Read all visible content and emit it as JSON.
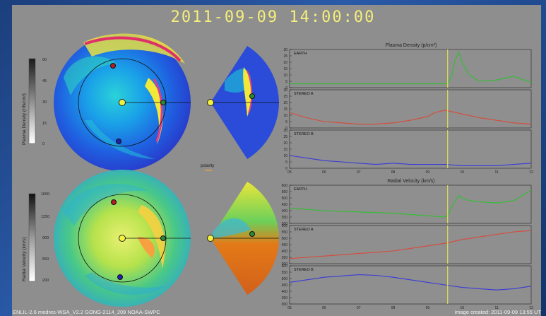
{
  "header": {
    "timestamp": "2011-09-09   14:00:00"
  },
  "footer": {
    "model_text": "ENLIL-2.6 medres-WSA_V2.2 GONG-2114_209 NOAA-SWPC",
    "created_text": "image created: 2011-09-09 13:55 UT"
  },
  "colorbars": {
    "density": {
      "label": "Plasma Density (r²N/cm³)",
      "ticks": [
        "60",
        "45",
        "30",
        "15",
        "0"
      ]
    },
    "velocity": {
      "label": "Radial Velocity (km/s)",
      "ticks": [
        "1600",
        "1250",
        "900",
        "550",
        "200"
      ]
    }
  },
  "polarity": {
    "label": "polarity"
  },
  "colors": {
    "earth": "#2fc02f",
    "stereo_a": "#d84a3a",
    "stereo_b": "#3a3ad8",
    "marker": "#f4f040",
    "accent_title": "#f4f07a"
  },
  "chart_data": [
    {
      "type": "line",
      "title": "Plasma Density (p/cm³)",
      "x_ticks": [
        "05",
        "06",
        "07",
        "08",
        "09",
        "10",
        "11",
        "12"
      ],
      "xlim": [
        5,
        12
      ],
      "current_time_x": 9.58,
      "panels": [
        {
          "name": "EARTH",
          "ylim": [
            0,
            30
          ],
          "ticks": [
            "30",
            "25",
            "20",
            "15",
            "10",
            "5",
            "0"
          ],
          "color": "#2fc02f",
          "x": [
            5,
            6,
            7,
            8,
            9,
            9.5,
            9.6,
            9.7,
            9.8,
            9.9,
            10,
            10.2,
            10.5,
            11,
            11.5,
            12
          ],
          "y": [
            3,
            3,
            3,
            3,
            3,
            3,
            4,
            10,
            22,
            28,
            20,
            10,
            5,
            6,
            9,
            4
          ]
        },
        {
          "name": "STEREO A",
          "ylim": [
            0,
            30
          ],
          "ticks": [
            "30",
            "25",
            "20",
            "15",
            "10",
            "5",
            "0"
          ],
          "color": "#d84a3a",
          "x": [
            5,
            5.5,
            6,
            6.5,
            7,
            7.5,
            8,
            8.5,
            9,
            9.2,
            9.5,
            10,
            10.5,
            11,
            11.5,
            12
          ],
          "y": [
            12,
            8,
            5,
            4,
            3,
            3,
            4,
            6,
            9,
            12,
            14,
            11,
            8,
            6,
            4,
            3
          ]
        },
        {
          "name": "STEREO B",
          "ylim": [
            0,
            30
          ],
          "ticks": [
            "30",
            "25",
            "20",
            "15",
            "10",
            "5",
            "0"
          ],
          "color": "#3a3ad8",
          "x": [
            5,
            5.5,
            6,
            6.5,
            7,
            7.5,
            8,
            8.5,
            9,
            9.5,
            10,
            10.5,
            11,
            11.5,
            12
          ],
          "y": [
            10,
            8,
            6,
            5,
            4,
            3,
            4,
            3,
            3,
            3,
            2,
            2,
            2,
            3,
            4
          ]
        }
      ]
    },
    {
      "type": "line",
      "title": "Radial Velocity (km/s)",
      "x_ticks": [
        "05",
        "06",
        "07",
        "08",
        "09",
        "10",
        "11",
        "12"
      ],
      "xlim": [
        5,
        12
      ],
      "current_time_x": 9.58,
      "panels": [
        {
          "name": "EARTH",
          "ylim": [
            300,
            600
          ],
          "ticks": [
            "600",
            "550",
            "500",
            "450",
            "400",
            "350",
            "300"
          ],
          "color": "#2fc02f",
          "x": [
            5,
            5.5,
            6,
            6.5,
            7,
            7.5,
            8,
            8.5,
            9,
            9.5,
            9.6,
            9.7,
            9.9,
            10,
            10.2,
            10.5,
            11,
            11.5,
            12
          ],
          "y": [
            420,
            410,
            400,
            395,
            390,
            385,
            380,
            370,
            360,
            350,
            370,
            430,
            520,
            500,
            480,
            470,
            460,
            480,
            560
          ]
        },
        {
          "name": "STEREO A",
          "ylim": [
            300,
            600
          ],
          "ticks": [
            "600",
            "550",
            "500",
            "450",
            "400",
            "350",
            "300"
          ],
          "color": "#d84a3a",
          "x": [
            5,
            5.5,
            6,
            6.5,
            7,
            7.5,
            8,
            8.5,
            9,
            9.5,
            10,
            10.5,
            11,
            11.5,
            12
          ],
          "y": [
            340,
            350,
            360,
            370,
            380,
            390,
            400,
            420,
            440,
            460,
            490,
            510,
            530,
            550,
            560
          ]
        },
        {
          "name": "STEREO B",
          "ylim": [
            300,
            600
          ],
          "ticks": [
            "600",
            "550",
            "500",
            "450",
            "400",
            "350",
            "300"
          ],
          "color": "#3a3ad8",
          "x": [
            5,
            5.5,
            6,
            6.5,
            7,
            7.5,
            8,
            8.5,
            9,
            9.5,
            10,
            10.5,
            11,
            11.5,
            12
          ],
          "y": [
            470,
            490,
            510,
            520,
            530,
            525,
            510,
            490,
            470,
            450,
            430,
            420,
            410,
            420,
            440
          ]
        }
      ]
    }
  ]
}
